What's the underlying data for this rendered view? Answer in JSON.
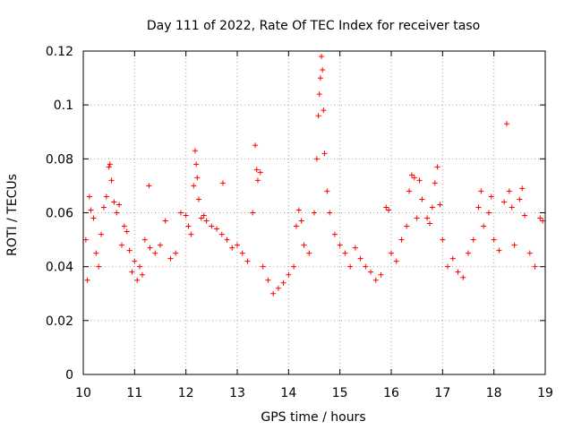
{
  "chart_data": {
    "type": "scatter",
    "title": "Day 111 of 2022, Rate Of TEC Index for receiver taso",
    "xlabel": "GPS time / hours",
    "ylabel": "ROTI / TECUs",
    "xlim": [
      10,
      19
    ],
    "ylim": [
      0,
      0.12
    ],
    "xticks": [
      "10",
      "11",
      "12",
      "13",
      "14",
      "15",
      "16",
      "17",
      "18",
      "19"
    ],
    "yticks": [
      "0",
      "0.02",
      "0.04",
      "0.06",
      "0.08",
      "0.1",
      "0.12"
    ],
    "grid": true,
    "marker": "+",
    "color": "#ff0000",
    "series": [
      {
        "name": "ROTI",
        "points": [
          [
            10.05,
            0.05
          ],
          [
            10.08,
            0.035
          ],
          [
            10.12,
            0.066
          ],
          [
            10.15,
            0.061
          ],
          [
            10.2,
            0.058
          ],
          [
            10.25,
            0.045
          ],
          [
            10.3,
            0.04
          ],
          [
            10.35,
            0.052
          ],
          [
            10.4,
            0.062
          ],
          [
            10.45,
            0.066
          ],
          [
            10.5,
            0.077
          ],
          [
            10.52,
            0.078
          ],
          [
            10.55,
            0.072
          ],
          [
            10.6,
            0.064
          ],
          [
            10.65,
            0.06
          ],
          [
            10.7,
            0.063
          ],
          [
            10.75,
            0.048
          ],
          [
            10.8,
            0.055
          ],
          [
            10.85,
            0.053
          ],
          [
            10.9,
            0.046
          ],
          [
            10.95,
            0.038
          ],
          [
            11.0,
            0.042
          ],
          [
            11.05,
            0.035
          ],
          [
            11.1,
            0.04
          ],
          [
            11.15,
            0.037
          ],
          [
            11.2,
            0.05
          ],
          [
            11.28,
            0.07
          ],
          [
            11.3,
            0.047
          ],
          [
            11.4,
            0.045
          ],
          [
            11.5,
            0.048
          ],
          [
            11.6,
            0.057
          ],
          [
            11.7,
            0.043
          ],
          [
            11.8,
            0.045
          ],
          [
            11.9,
            0.06
          ],
          [
            12.0,
            0.059
          ],
          [
            12.05,
            0.055
          ],
          [
            12.1,
            0.052
          ],
          [
            12.15,
            0.07
          ],
          [
            12.18,
            0.083
          ],
          [
            12.2,
            0.078
          ],
          [
            12.22,
            0.073
          ],
          [
            12.25,
            0.065
          ],
          [
            12.3,
            0.058
          ],
          [
            12.35,
            0.059
          ],
          [
            12.4,
            0.057
          ],
          [
            12.5,
            0.055
          ],
          [
            12.6,
            0.054
          ],
          [
            12.7,
            0.052
          ],
          [
            12.72,
            0.071
          ],
          [
            12.8,
            0.05
          ],
          [
            12.9,
            0.047
          ],
          [
            13.0,
            0.048
          ],
          [
            13.1,
            0.045
          ],
          [
            13.2,
            0.042
          ],
          [
            13.3,
            0.06
          ],
          [
            13.35,
            0.085
          ],
          [
            13.38,
            0.076
          ],
          [
            13.4,
            0.072
          ],
          [
            13.45,
            0.075
          ],
          [
            13.5,
            0.04
          ],
          [
            13.6,
            0.035
          ],
          [
            13.7,
            0.03
          ],
          [
            13.8,
            0.032
          ],
          [
            13.9,
            0.034
          ],
          [
            14.0,
            0.037
          ],
          [
            14.1,
            0.04
          ],
          [
            14.15,
            0.055
          ],
          [
            14.2,
            0.061
          ],
          [
            14.25,
            0.057
          ],
          [
            14.3,
            0.048
          ],
          [
            14.4,
            0.045
          ],
          [
            14.5,
            0.06
          ],
          [
            14.55,
            0.08
          ],
          [
            14.58,
            0.096
          ],
          [
            14.6,
            0.104
          ],
          [
            14.62,
            0.11
          ],
          [
            14.64,
            0.118
          ],
          [
            14.66,
            0.113
          ],
          [
            14.68,
            0.098
          ],
          [
            14.7,
            0.082
          ],
          [
            14.75,
            0.068
          ],
          [
            14.8,
            0.06
          ],
          [
            14.9,
            0.052
          ],
          [
            15.0,
            0.048
          ],
          [
            15.1,
            0.045
          ],
          [
            15.2,
            0.04
          ],
          [
            15.3,
            0.047
          ],
          [
            15.4,
            0.043
          ],
          [
            15.5,
            0.04
          ],
          [
            15.6,
            0.038
          ],
          [
            15.7,
            0.035
          ],
          [
            15.8,
            0.037
          ],
          [
            15.9,
            0.062
          ],
          [
            15.95,
            0.061
          ],
          [
            16.0,
            0.045
          ],
          [
            16.1,
            0.042
          ],
          [
            16.2,
            0.05
          ],
          [
            16.3,
            0.055
          ],
          [
            16.35,
            0.068
          ],
          [
            16.4,
            0.074
          ],
          [
            16.45,
            0.073
          ],
          [
            16.5,
            0.058
          ],
          [
            16.55,
            0.072
          ],
          [
            16.6,
            0.065
          ],
          [
            16.7,
            0.058
          ],
          [
            16.75,
            0.056
          ],
          [
            16.8,
            0.062
          ],
          [
            16.85,
            0.071
          ],
          [
            16.9,
            0.077
          ],
          [
            16.95,
            0.063
          ],
          [
            17.0,
            0.05
          ],
          [
            17.1,
            0.04
          ],
          [
            17.2,
            0.043
          ],
          [
            17.3,
            0.038
          ],
          [
            17.4,
            0.036
          ],
          [
            17.5,
            0.045
          ],
          [
            17.6,
            0.05
          ],
          [
            17.7,
            0.062
          ],
          [
            17.75,
            0.068
          ],
          [
            17.8,
            0.055
          ],
          [
            17.9,
            0.06
          ],
          [
            17.95,
            0.066
          ],
          [
            18.0,
            0.05
          ],
          [
            18.1,
            0.046
          ],
          [
            18.2,
            0.064
          ],
          [
            18.25,
            0.093
          ],
          [
            18.3,
            0.068
          ],
          [
            18.35,
            0.062
          ],
          [
            18.4,
            0.048
          ],
          [
            18.5,
            0.065
          ],
          [
            18.55,
            0.069
          ],
          [
            18.6,
            0.059
          ],
          [
            18.7,
            0.045
          ],
          [
            18.8,
            0.04
          ],
          [
            18.9,
            0.058
          ],
          [
            18.95,
            0.057
          ]
        ]
      }
    ]
  }
}
